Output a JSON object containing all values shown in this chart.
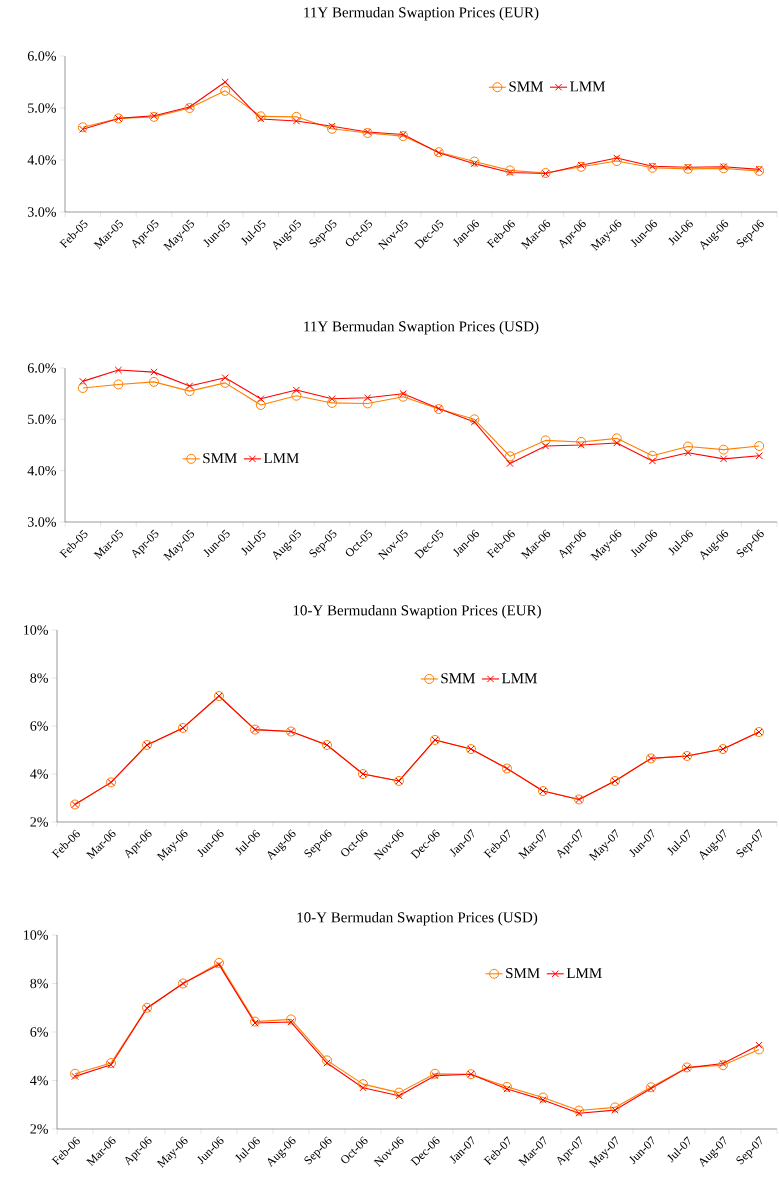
{
  "chart_data": [
    {
      "type": "line",
      "title": "11Y Bermudan Swaption Prices (EUR)",
      "categories": [
        "Feb-05",
        "Mar-05",
        "Apr-05",
        "May-05",
        "Jun-05",
        "Jul-05",
        "Aug-05",
        "Sep-05",
        "Oct-05",
        "Nov-05",
        "Dec-05",
        "Jan-06",
        "Feb-06",
        "Mar-06",
        "Apr-06",
        "May-06",
        "Jun-06",
        "Jul-06",
        "Aug-06",
        "Sep-06"
      ],
      "ylim": [
        3,
        6
      ],
      "yticks": [
        {
          "value": 3,
          "label": "3.0%"
        },
        {
          "value": 4,
          "label": "4.0%"
        },
        {
          "value": 5,
          "label": "5.0%"
        },
        {
          "value": 6,
          "label": "6.0%"
        }
      ],
      "legend": "top right",
      "grid": false,
      "series": [
        {
          "name": "SMM",
          "color": "#ff8000",
          "marker": "circle",
          "values": [
            4.63,
            4.8,
            4.83,
            5.0,
            5.33,
            4.84,
            4.83,
            4.6,
            4.52,
            4.46,
            4.15,
            3.97,
            3.8,
            3.75,
            3.87,
            3.98,
            3.85,
            3.83,
            3.84,
            3.79
          ]
        },
        {
          "name": "LMM",
          "color": "#ff0000",
          "marker": "cross",
          "values": [
            4.59,
            4.8,
            4.85,
            5.02,
            5.5,
            4.79,
            4.75,
            4.65,
            4.54,
            4.49,
            4.14,
            3.93,
            3.76,
            3.74,
            3.9,
            4.04,
            3.88,
            3.86,
            3.87,
            3.82
          ]
        }
      ]
    },
    {
      "type": "line",
      "title": "11Y Bermudan Swaption Prices (USD)",
      "categories": [
        "Feb-05",
        "Mar-05",
        "Apr-05",
        "May-05",
        "Jun-05",
        "Jul-05",
        "Aug-05",
        "Sep-05",
        "Oct-05",
        "Nov-05",
        "Dec-05",
        "Jan-06",
        "Feb-06",
        "Mar-06",
        "Apr-06",
        "May-06",
        "Jun-06",
        "Jul-06",
        "Aug-06",
        "Sep-06"
      ],
      "ylim": [
        3,
        6
      ],
      "yticks": [
        {
          "value": 3,
          "label": "3.0%"
        },
        {
          "value": 4,
          "label": "4.0%"
        },
        {
          "value": 5,
          "label": "5.0%"
        },
        {
          "value": 6,
          "label": "6.0%"
        }
      ],
      "legend": "left",
      "grid": false,
      "series": [
        {
          "name": "SMM",
          "color": "#ff8000",
          "marker": "circle",
          "values": [
            5.61,
            5.68,
            5.73,
            5.55,
            5.71,
            5.28,
            5.46,
            5.32,
            5.31,
            5.44,
            5.2,
            5.0,
            4.28,
            4.59,
            4.56,
            4.63,
            4.29,
            4.47,
            4.41,
            4.48
          ]
        },
        {
          "name": "LMM",
          "color": "#ff0000",
          "marker": "cross",
          "values": [
            5.74,
            5.96,
            5.92,
            5.65,
            5.81,
            5.4,
            5.57,
            5.4,
            5.42,
            5.5,
            5.21,
            4.95,
            4.14,
            4.48,
            4.5,
            4.54,
            4.19,
            4.35,
            4.23,
            4.29
          ]
        }
      ]
    },
    {
      "type": "line",
      "title": "10-Y Bermudann Swaption Prices (EUR)",
      "categories": [
        "Feb-06",
        "Mar-06",
        "Apr-06",
        "May-06",
        "Jun-06",
        "Jul-06",
        "Aug-06",
        "Sep-06",
        "Oct-06",
        "Nov-06",
        "Dec-06",
        "Jan-07",
        "Feb-07",
        "Mar-07",
        "Apr-07",
        "May-07",
        "Jun-07",
        "Jul-07",
        "Aug-07",
        "Sep-07"
      ],
      "ylim": [
        2,
        10
      ],
      "yticks": [
        {
          "value": 2,
          "label": "2%"
        },
        {
          "value": 4,
          "label": "4%"
        },
        {
          "value": 6,
          "label": "6%"
        },
        {
          "value": 8,
          "label": "8%"
        },
        {
          "value": 10,
          "label": "10%"
        }
      ],
      "legend": "top",
      "grid": false,
      "series": [
        {
          "name": "SMM",
          "color": "#ff8000",
          "marker": "circle",
          "values": [
            2.73,
            3.65,
            5.21,
            5.92,
            7.25,
            5.85,
            5.77,
            5.21,
            4.0,
            3.71,
            5.42,
            5.04,
            4.23,
            3.29,
            2.94,
            3.71,
            4.65,
            4.75,
            5.04,
            5.75
          ]
        },
        {
          "name": "LMM",
          "color": "#ff0000",
          "marker": "cross",
          "values": [
            2.73,
            3.65,
            5.21,
            5.92,
            7.25,
            5.85,
            5.77,
            5.21,
            4.0,
            3.71,
            5.42,
            5.04,
            4.23,
            3.29,
            2.94,
            3.71,
            4.65,
            4.75,
            5.04,
            5.75
          ]
        }
      ]
    },
    {
      "type": "line",
      "title": "10-Y Bermudan Swaption Prices (USD)",
      "categories": [
        "Feb-06",
        "Mar-06",
        "Apr-06",
        "May-06",
        "Jun-06",
        "Jul-06",
        "Aug-06",
        "Sep-06",
        "Oct-06",
        "Nov-06",
        "Dec-06",
        "Jan-07",
        "Feb-07",
        "Mar-07",
        "Apr-07",
        "May-07",
        "Jun-07",
        "Jul-07",
        "Aug-07",
        "Sep-07"
      ],
      "ylim": [
        2,
        10
      ],
      "yticks": [
        {
          "value": 2,
          "label": "2%"
        },
        {
          "value": 4,
          "label": "4%"
        },
        {
          "value": 6,
          "label": "6%"
        },
        {
          "value": 8,
          "label": "8%"
        },
        {
          "value": 10,
          "label": "10%"
        }
      ],
      "legend": "top right",
      "grid": false,
      "series": [
        {
          "name": "SMM",
          "color": "#ff8000",
          "marker": "circle",
          "values": [
            4.28,
            4.72,
            7.0,
            8.0,
            8.85,
            6.43,
            6.52,
            4.83,
            3.85,
            3.5,
            4.28,
            4.26,
            3.74,
            3.3,
            2.76,
            2.89,
            3.72,
            4.54,
            4.63,
            5.28
          ]
        },
        {
          "name": "LMM",
          "color": "#ff0000",
          "marker": "cross",
          "values": [
            4.17,
            4.65,
            6.98,
            8.0,
            8.78,
            6.37,
            6.41,
            4.72,
            3.7,
            3.37,
            4.2,
            4.26,
            3.65,
            3.2,
            2.65,
            2.78,
            3.67,
            4.52,
            4.7,
            5.46
          ]
        }
      ]
    }
  ]
}
